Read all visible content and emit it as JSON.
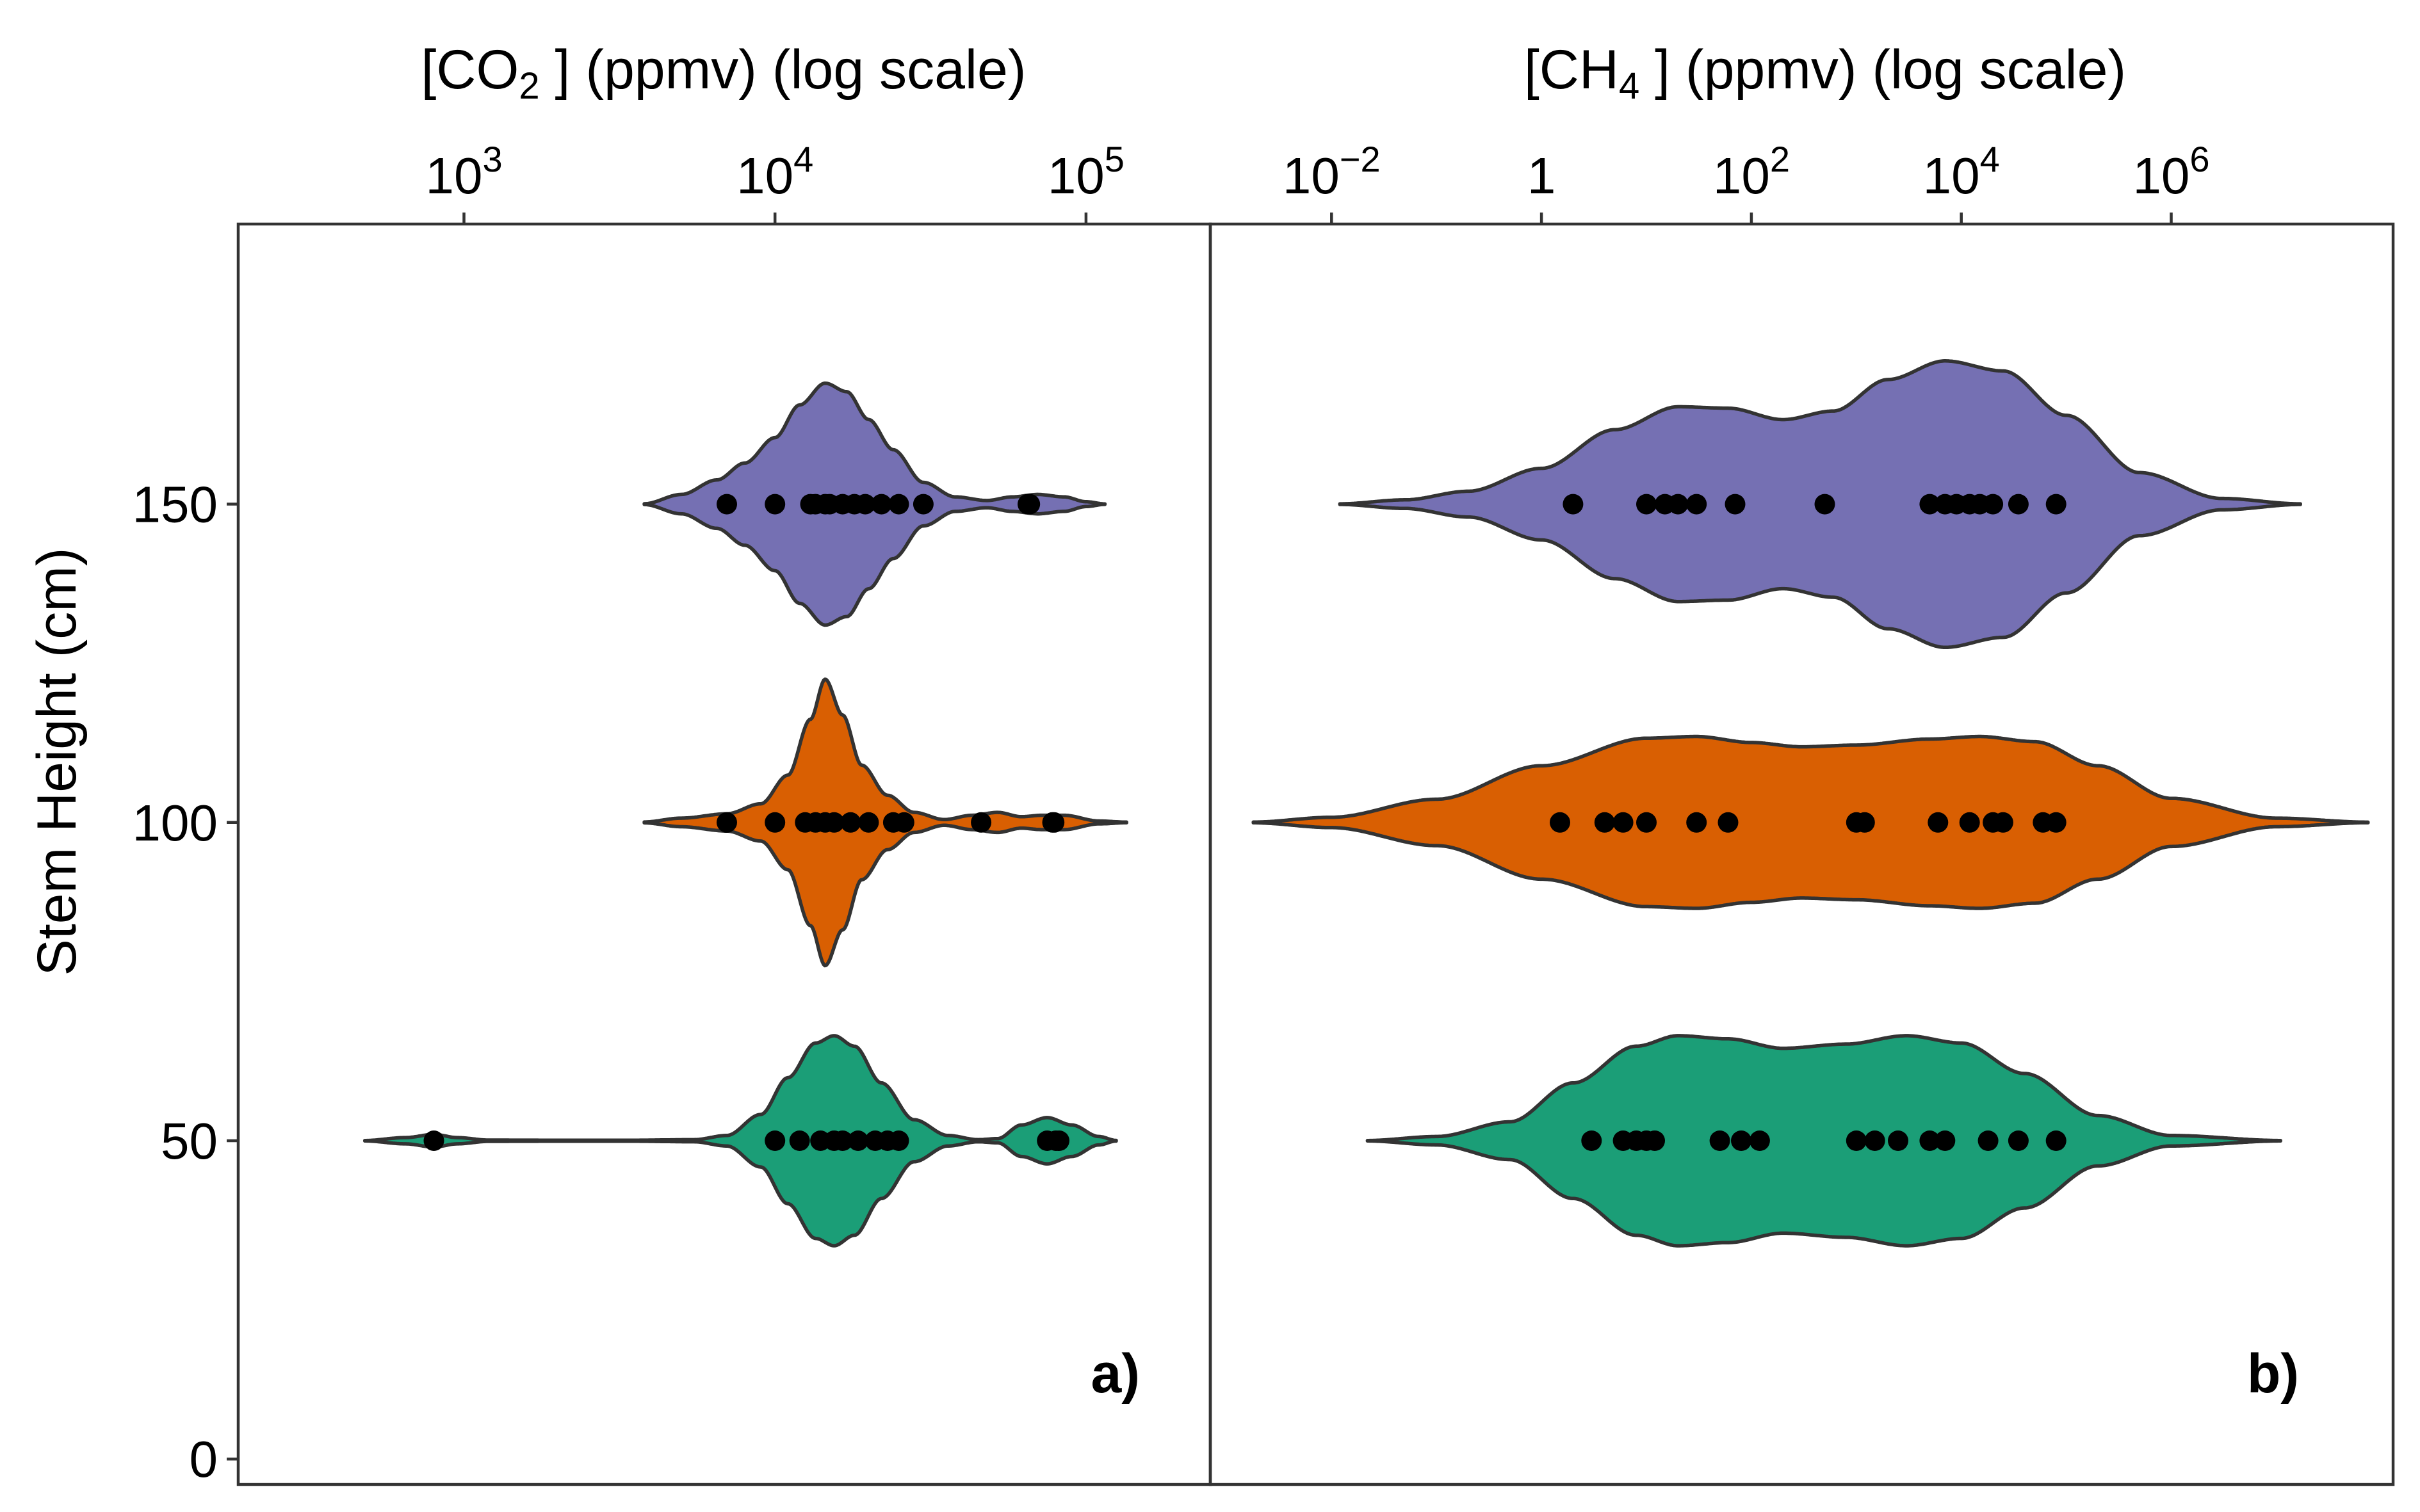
{
  "chart_data": [
    {
      "type": "violin",
      "panel_label": "a)",
      "title": "",
      "xlabel_prefix": "[CO",
      "xlabel_sub": "2",
      "xlabel_suffix": " ]  (ppmv) (log scale)",
      "ylabel": "Stem Height (cm)",
      "x_scale": "log10",
      "x_ticks": [
        {
          "value": 1000,
          "base": "10",
          "exp": "3"
        },
        {
          "value": 10000,
          "base": "10",
          "exp": "4"
        },
        {
          "value": 100000,
          "base": "10",
          "exp": "5"
        }
      ],
      "y_ticks": [
        0,
        50,
        100,
        150
      ],
      "x_range": [
        188,
        251000
      ],
      "y_range": [
        -4,
        194
      ],
      "series": [
        {
          "height": 150,
          "color": "#7570b3",
          "range": [
            3800,
            115000
          ],
          "max_half_width": 19,
          "density": [
            [
              3800,
              0.003
            ],
            [
              5000,
              0.08
            ],
            [
              6500,
              0.2
            ],
            [
              8000,
              0.34
            ],
            [
              10000,
              0.55
            ],
            [
              12000,
              0.82
            ],
            [
              14500,
              1.0
            ],
            [
              17000,
              0.93
            ],
            [
              20000,
              0.7
            ],
            [
              24000,
              0.45
            ],
            [
              30000,
              0.18
            ],
            [
              38000,
              0.06
            ],
            [
              48000,
              0.03
            ],
            [
              58000,
              0.06
            ],
            [
              70000,
              0.08
            ],
            [
              85000,
              0.06
            ],
            [
              100000,
              0.02
            ],
            [
              115000,
              0.002
            ]
          ],
          "points": [
            7000,
            10000,
            13000,
            13500,
            14500,
            15000,
            16500,
            18000,
            19500,
            22000,
            25000,
            30000,
            65000,
            66000
          ]
        },
        {
          "height": 100,
          "color": "#d95f02",
          "range": [
            3800,
            135000
          ],
          "max_half_width": 22.5,
          "density": [
            [
              3800,
              0.003
            ],
            [
              5000,
              0.03
            ],
            [
              7000,
              0.06
            ],
            [
              9000,
              0.13
            ],
            [
              11000,
              0.33
            ],
            [
              13000,
              0.72
            ],
            [
              14500,
              1.0
            ],
            [
              16500,
              0.75
            ],
            [
              19000,
              0.4
            ],
            [
              23000,
              0.19
            ],
            [
              28000,
              0.07
            ],
            [
              35000,
              0.02
            ],
            [
              43000,
              0.05
            ],
            [
              52000,
              0.07
            ],
            [
              62000,
              0.04
            ],
            [
              72000,
              0.05
            ],
            [
              85000,
              0.05
            ],
            [
              110000,
              0.01
            ],
            [
              135000,
              0.002
            ]
          ],
          "points": [
            7000,
            10000,
            12500,
            13500,
            14500,
            15500,
            17500,
            20000,
            24000,
            26000,
            46000,
            78000,
            79000
          ]
        },
        {
          "height": 50,
          "color": "#1b9e77",
          "range": [
            480,
            125000
          ],
          "max_half_width": 16.5,
          "density": [
            [
              480,
              0.002
            ],
            [
              650,
              0.03
            ],
            [
              800,
              0.06
            ],
            [
              950,
              0.03
            ],
            [
              1200,
              0.006
            ],
            [
              2000,
              0.005
            ],
            [
              3500,
              0.005
            ],
            [
              5500,
              0.01
            ],
            [
              7000,
              0.05
            ],
            [
              9000,
              0.25
            ],
            [
              11000,
              0.6
            ],
            [
              13500,
              0.93
            ],
            [
              15500,
              1.0
            ],
            [
              18000,
              0.9
            ],
            [
              22000,
              0.55
            ],
            [
              28000,
              0.2
            ],
            [
              36000,
              0.05
            ],
            [
              45000,
              0.01
            ],
            [
              52000,
              0.02
            ],
            [
              62000,
              0.15
            ],
            [
              75000,
              0.22
            ],
            [
              90000,
              0.15
            ],
            [
              110000,
              0.04
            ],
            [
              125000,
              0.003
            ]
          ],
          "points": [
            800,
            10000,
            12000,
            14000,
            15500,
            16500,
            18500,
            21000,
            23000,
            25000,
            75000,
            80000,
            82000
          ]
        }
      ]
    },
    {
      "type": "violin",
      "panel_label": "b)",
      "title": "",
      "xlabel_prefix": "[CH",
      "xlabel_sub": "4",
      "xlabel_suffix": " ] (ppmv) (log scale)",
      "ylabel": "Stem Height (cm)",
      "x_scale": "log10",
      "x_ticks": [
        {
          "value": 0.01,
          "base": "10",
          "exp": "−2"
        },
        {
          "value": 1,
          "base": "1",
          "exp": ""
        },
        {
          "value": 100,
          "base": "10",
          "exp": "2"
        },
        {
          "value": 10000,
          "base": "10",
          "exp": "4"
        },
        {
          "value": 1000000,
          "base": "10",
          "exp": "6"
        }
      ],
      "y_ticks": [
        0,
        50,
        100,
        150
      ],
      "x_range": [
        0.0007,
        130000000.0
      ],
      "y_range": [
        -4,
        194
      ],
      "series": [
        {
          "height": 150,
          "color": "#7570b3",
          "range": [
            0.012,
            17000000.0
          ],
          "max_half_width": 22.5,
          "density": [
            [
              0.012,
              0.002
            ],
            [
              0.05,
              0.03
            ],
            [
              0.2,
              0.09
            ],
            [
              1,
              0.25
            ],
            [
              5,
              0.52
            ],
            [
              20,
              0.68
            ],
            [
              60,
              0.67
            ],
            [
              200,
              0.59
            ],
            [
              600,
              0.65
            ],
            [
              2000,
              0.87
            ],
            [
              7000,
              1.0
            ],
            [
              25000,
              0.93
            ],
            [
              100000,
              0.62
            ],
            [
              500000,
              0.22
            ],
            [
              3000000,
              0.04
            ],
            [
              17000000,
              0.002
            ]
          ],
          "points": [
            2,
            10,
            15,
            20,
            30,
            70,
            500,
            5000,
            7000,
            9000,
            12000,
            15000,
            20000,
            35000,
            80000
          ]
        },
        {
          "height": 100,
          "color": "#d95f02",
          "range": [
            0.0018,
            75000000.0
          ],
          "max_half_width": 13.5,
          "density": [
            [
              0.0018,
              0.004
            ],
            [
              0.01,
              0.06
            ],
            [
              0.1,
              0.27
            ],
            [
              1,
              0.66
            ],
            [
              10,
              0.98
            ],
            [
              30,
              1.0
            ],
            [
              100,
              0.93
            ],
            [
              300,
              0.88
            ],
            [
              1000,
              0.9
            ],
            [
              5000,
              0.97
            ],
            [
              15000,
              1.0
            ],
            [
              50000,
              0.94
            ],
            [
              200000,
              0.66
            ],
            [
              1000000,
              0.28
            ],
            [
              10000000,
              0.05
            ],
            [
              75000000,
              0.003
            ]
          ],
          "points": [
            1.5,
            4,
            6,
            10,
            30,
            60,
            1000,
            1200,
            6000,
            12000,
            20000,
            25000,
            60000,
            80000
          ]
        },
        {
          "height": 50,
          "color": "#1b9e77",
          "range": [
            0.022,
            11000000.0
          ],
          "max_half_width": 16.5,
          "density": [
            [
              0.022,
              0.002
            ],
            [
              0.1,
              0.04
            ],
            [
              0.5,
              0.18
            ],
            [
              2,
              0.55
            ],
            [
              8,
              0.9
            ],
            [
              20,
              1.0
            ],
            [
              60,
              0.97
            ],
            [
              200,
              0.88
            ],
            [
              800,
              0.92
            ],
            [
              3000,
              1.0
            ],
            [
              10000,
              0.93
            ],
            [
              40000,
              0.64
            ],
            [
              200000,
              0.24
            ],
            [
              1000000,
              0.05
            ],
            [
              11000000,
              0.002
            ]
          ],
          "points": [
            3,
            6,
            8,
            10,
            12,
            50,
            80,
            120,
            1000,
            1500,
            2500,
            5000,
            7000,
            18000,
            35000,
            80000
          ]
        }
      ]
    }
  ]
}
